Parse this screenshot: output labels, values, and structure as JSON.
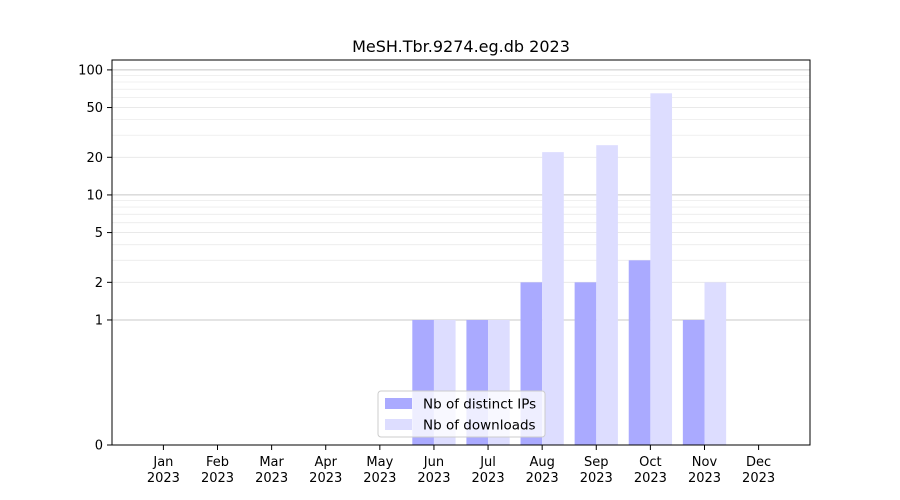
{
  "chart_data": {
    "type": "bar",
    "title": "MeSH.Tbr.9274.eg.db 2023",
    "xlabel": "",
    "ylabel": "",
    "yscale": "symlog",
    "ylim": [
      0,
      120
    ],
    "yticks": [
      0,
      1,
      2,
      5,
      10,
      20,
      50,
      100
    ],
    "grid": true,
    "legend_position": "lower center",
    "categories": [
      [
        "Jan",
        "2023"
      ],
      [
        "Feb",
        "2023"
      ],
      [
        "Mar",
        "2023"
      ],
      [
        "Apr",
        "2023"
      ],
      [
        "May",
        "2023"
      ],
      [
        "Jun",
        "2023"
      ],
      [
        "Jul",
        "2023"
      ],
      [
        "Aug",
        "2023"
      ],
      [
        "Sep",
        "2023"
      ],
      [
        "Oct",
        "2023"
      ],
      [
        "Nov",
        "2023"
      ],
      [
        "Dec",
        "2023"
      ]
    ],
    "series": [
      {
        "name": "Nb of distinct IPs",
        "color": "#aaaaff",
        "values": [
          0,
          0,
          0,
          0,
          0,
          1,
          1,
          2,
          2,
          3,
          1,
          0
        ]
      },
      {
        "name": "Nb of downloads",
        "color": "#ddddff",
        "values": [
          0,
          0,
          0,
          0,
          0,
          1,
          1,
          22,
          25,
          65,
          2,
          0
        ]
      }
    ]
  }
}
